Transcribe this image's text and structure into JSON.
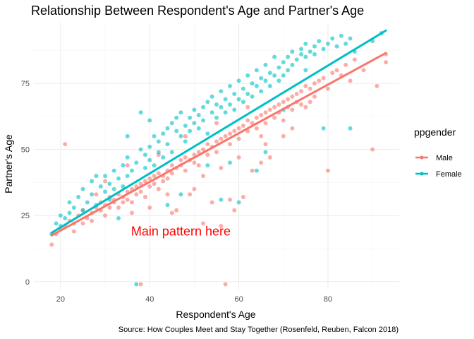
{
  "chart_data": {
    "type": "scatter",
    "title": "Relationship Between Respondent's Age and Partner's Age",
    "xlabel": "Respondent's Age",
    "ylabel": "Partner's Age",
    "xlim": [
      14,
      96
    ],
    "ylim": [
      -3,
      98
    ],
    "x_ticks": [
      20,
      40,
      60,
      80
    ],
    "y_ticks": [
      0,
      25,
      50,
      75
    ],
    "grid": true,
    "legend": {
      "title": "ppgender",
      "position": "right",
      "entries": [
        {
          "label": "Male",
          "color": "#F8766D"
        },
        {
          "label": "Female",
          "color": "#00BFC4"
        }
      ]
    },
    "annotation": {
      "text": "Main pattern here",
      "x": 47,
      "y": 19,
      "color": "#ff0000"
    },
    "caption": "Source: How Couples Meet and Stay Together (Rosenfeld, Reuben, Falcon 2018)",
    "series": [
      {
        "name": "Male",
        "color": "#F8766D",
        "fit_line": {
          "x": [
            18,
            93
          ],
          "y": [
            17.5,
            86.5
          ]
        },
        "points": [
          [
            18,
            14
          ],
          [
            19,
            18
          ],
          [
            20,
            20
          ],
          [
            21,
            52
          ],
          [
            21,
            21
          ],
          [
            22,
            23
          ],
          [
            23,
            19
          ],
          [
            23,
            22
          ],
          [
            24,
            25
          ],
          [
            25,
            22
          ],
          [
            25,
            27
          ],
          [
            26,
            24
          ],
          [
            27,
            26
          ],
          [
            27,
            23
          ],
          [
            28,
            28
          ],
          [
            29,
            27
          ],
          [
            29,
            30
          ],
          [
            30,
            25
          ],
          [
            30,
            29
          ],
          [
            31,
            32
          ],
          [
            31,
            28
          ],
          [
            32,
            30
          ],
          [
            32,
            31
          ],
          [
            33,
            28
          ],
          [
            33,
            33
          ],
          [
            34,
            32
          ],
          [
            34,
            30
          ],
          [
            35,
            34
          ],
          [
            35,
            31
          ],
          [
            36,
            30
          ],
          [
            36,
            35
          ],
          [
            37,
            33
          ],
          [
            37,
            36
          ],
          [
            38,
            34
          ],
          [
            38,
            -1
          ],
          [
            38,
            37
          ],
          [
            39,
            32
          ],
          [
            39,
            38
          ],
          [
            40,
            36
          ],
          [
            40,
            28
          ],
          [
            40,
            39
          ],
          [
            41,
            37
          ],
          [
            41,
            40
          ],
          [
            42,
            35
          ],
          [
            42,
            41
          ],
          [
            43,
            40
          ],
          [
            43,
            38
          ],
          [
            44,
            42
          ],
          [
            44,
            39
          ],
          [
            45,
            41
          ],
          [
            45,
            44
          ],
          [
            46,
            43
          ],
          [
            46,
            27
          ],
          [
            47,
            44
          ],
          [
            47,
            46
          ],
          [
            48,
            42
          ],
          [
            48,
            47
          ],
          [
            49,
            46
          ],
          [
            49,
            33
          ],
          [
            50,
            48
          ],
          [
            50,
            45
          ],
          [
            51,
            49
          ],
          [
            51,
            44
          ],
          [
            52,
            50
          ],
          [
            52,
            22
          ],
          [
            53,
            48
          ],
          [
            53,
            52
          ],
          [
            54,
            51
          ],
          [
            54,
            30
          ],
          [
            55,
            53
          ],
          [
            55,
            49
          ],
          [
            56,
            54
          ],
          [
            56,
            21
          ],
          [
            57,
            55
          ],
          [
            57,
            -1
          ],
          [
            58,
            52
          ],
          [
            58,
            56
          ],
          [
            59,
            57
          ],
          [
            59,
            27
          ],
          [
            60,
            58
          ],
          [
            60,
            54
          ],
          [
            61,
            59
          ],
          [
            61,
            32
          ],
          [
            62,
            57
          ],
          [
            62,
            61
          ],
          [
            63,
            60
          ],
          [
            63,
            42
          ],
          [
            64,
            62
          ],
          [
            64,
            58
          ],
          [
            65,
            63
          ],
          [
            65,
            55
          ],
          [
            66,
            64
          ],
          [
            66,
            60
          ],
          [
            67,
            65
          ],
          [
            67,
            47
          ],
          [
            68,
            66
          ],
          [
            68,
            62
          ],
          [
            69,
            67
          ],
          [
            69,
            64
          ],
          [
            70,
            68
          ],
          [
            70,
            61
          ],
          [
            71,
            69
          ],
          [
            71,
            66
          ],
          [
            72,
            70
          ],
          [
            72,
            65
          ],
          [
            73,
            71
          ],
          [
            73,
            68
          ],
          [
            74,
            72
          ],
          [
            74,
            67
          ],
          [
            75,
            74
          ],
          [
            75,
            66
          ],
          [
            76,
            73
          ],
          [
            77,
            75
          ],
          [
            77,
            70
          ],
          [
            78,
            76
          ],
          [
            79,
            77
          ],
          [
            80,
            73
          ],
          [
            81,
            79
          ],
          [
            82,
            80
          ],
          [
            83,
            78
          ],
          [
            84,
            82
          ],
          [
            85,
            76
          ],
          [
            86,
            84
          ],
          [
            88,
            80
          ],
          [
            90,
            50
          ],
          [
            91,
            74
          ],
          [
            93,
            83
          ],
          [
            93,
            86
          ],
          [
            80,
            42
          ],
          [
            30,
            38
          ],
          [
            35,
            44
          ],
          [
            42,
            48
          ],
          [
            48,
            55
          ],
          [
            55,
            60
          ],
          [
            62,
            66
          ],
          [
            45,
            26
          ],
          [
            50,
            35
          ],
          [
            58,
            31
          ],
          [
            65,
            45
          ],
          [
            70,
            55
          ],
          [
            52,
            40
          ],
          [
            44,
            33
          ],
          [
            36,
            26
          ],
          [
            28,
            33
          ],
          [
            60,
            47
          ],
          [
            66,
            52
          ],
          [
            72,
            58
          ],
          [
            76,
            68
          ],
          [
            56,
            43
          ]
        ]
      },
      {
        "name": "Female",
        "color": "#00BFC4",
        "fit_line": {
          "x": [
            18,
            93
          ],
          "y": [
            18.5,
            95
          ]
        },
        "points": [
          [
            18,
            18
          ],
          [
            19,
            22
          ],
          [
            20,
            21
          ],
          [
            20,
            25
          ],
          [
            21,
            24
          ],
          [
            22,
            26
          ],
          [
            22,
            30
          ],
          [
            23,
            28
          ],
          [
            24,
            32
          ],
          [
            25,
            27
          ],
          [
            25,
            35
          ],
          [
            26,
            30
          ],
          [
            27,
            33
          ],
          [
            27,
            38
          ],
          [
            28,
            29
          ],
          [
            29,
            36
          ],
          [
            30,
            34
          ],
          [
            30,
            40
          ],
          [
            31,
            31
          ],
          [
            31,
            37
          ],
          [
            32,
            42
          ],
          [
            32,
            35
          ],
          [
            33,
            39
          ],
          [
            34,
            44
          ],
          [
            34,
            36
          ],
          [
            35,
            40
          ],
          [
            35,
            47
          ],
          [
            36,
            42
          ],
          [
            37,
            45
          ],
          [
            37,
            -1
          ],
          [
            38,
            50
          ],
          [
            38,
            64
          ],
          [
            39,
            43
          ],
          [
            39,
            48
          ],
          [
            40,
            51
          ],
          [
            40,
            46
          ],
          [
            41,
            55
          ],
          [
            41,
            44
          ],
          [
            42,
            53
          ],
          [
            42,
            49
          ],
          [
            43,
            56
          ],
          [
            43,
            47
          ],
          [
            44,
            58
          ],
          [
            44,
            52
          ],
          [
            45,
            60
          ],
          [
            45,
            49
          ],
          [
            46,
            57
          ],
          [
            46,
            62
          ],
          [
            47,
            55
          ],
          [
            47,
            64
          ],
          [
            48,
            59
          ],
          [
            48,
            53
          ],
          [
            49,
            62
          ],
          [
            49,
            57
          ],
          [
            50,
            65
          ],
          [
            50,
            60
          ],
          [
            51,
            63
          ],
          [
            51,
            58
          ],
          [
            52,
            66
          ],
          [
            52,
            61
          ],
          [
            53,
            68
          ],
          [
            53,
            56
          ],
          [
            54,
            64
          ],
          [
            54,
            70
          ],
          [
            55,
            67
          ],
          [
            55,
            62
          ],
          [
            56,
            72
          ],
          [
            56,
            66
          ],
          [
            57,
            69
          ],
          [
            57,
            64
          ],
          [
            58,
            74
          ],
          [
            58,
            67
          ],
          [
            59,
            71
          ],
          [
            59,
            65
          ],
          [
            60,
            76
          ],
          [
            60,
            69
          ],
          [
            61,
            73
          ],
          [
            61,
            68
          ],
          [
            62,
            78
          ],
          [
            62,
            71
          ],
          [
            63,
            75
          ],
          [
            63,
            70
          ],
          [
            64,
            80
          ],
          [
            64,
            74
          ],
          [
            65,
            77
          ],
          [
            65,
            72
          ],
          [
            66,
            82
          ],
          [
            66,
            76
          ],
          [
            67,
            79
          ],
          [
            67,
            74
          ],
          [
            68,
            85
          ],
          [
            68,
            78
          ],
          [
            69,
            81
          ],
          [
            69,
            76
          ],
          [
            70,
            83
          ],
          [
            70,
            78
          ],
          [
            71,
            85
          ],
          [
            71,
            80
          ],
          [
            72,
            87
          ],
          [
            72,
            82
          ],
          [
            73,
            84
          ],
          [
            74,
            88
          ],
          [
            74,
            86
          ],
          [
            75,
            90
          ],
          [
            75,
            85
          ],
          [
            76,
            87
          ],
          [
            77,
            89
          ],
          [
            77,
            86
          ],
          [
            78,
            91
          ],
          [
            79,
            88
          ],
          [
            80,
            90
          ],
          [
            81,
            92
          ],
          [
            82,
            89
          ],
          [
            83,
            93
          ],
          [
            84,
            90
          ],
          [
            85,
            92
          ],
          [
            85,
            58
          ],
          [
            86,
            87
          ],
          [
            90,
            91
          ],
          [
            92,
            94
          ],
          [
            60,
            30
          ],
          [
            56,
            31
          ],
          [
            64,
            42
          ],
          [
            70,
            65
          ],
          [
            75,
            80
          ],
          [
            35,
            55
          ],
          [
            28,
            40
          ],
          [
            40,
            61
          ],
          [
            47,
            33
          ],
          [
            53,
            44
          ],
          [
            66,
            49
          ],
          [
            79,
            58
          ],
          [
            33,
            24
          ],
          [
            44,
            29
          ],
          [
            58,
            45
          ]
        ]
      }
    ]
  }
}
